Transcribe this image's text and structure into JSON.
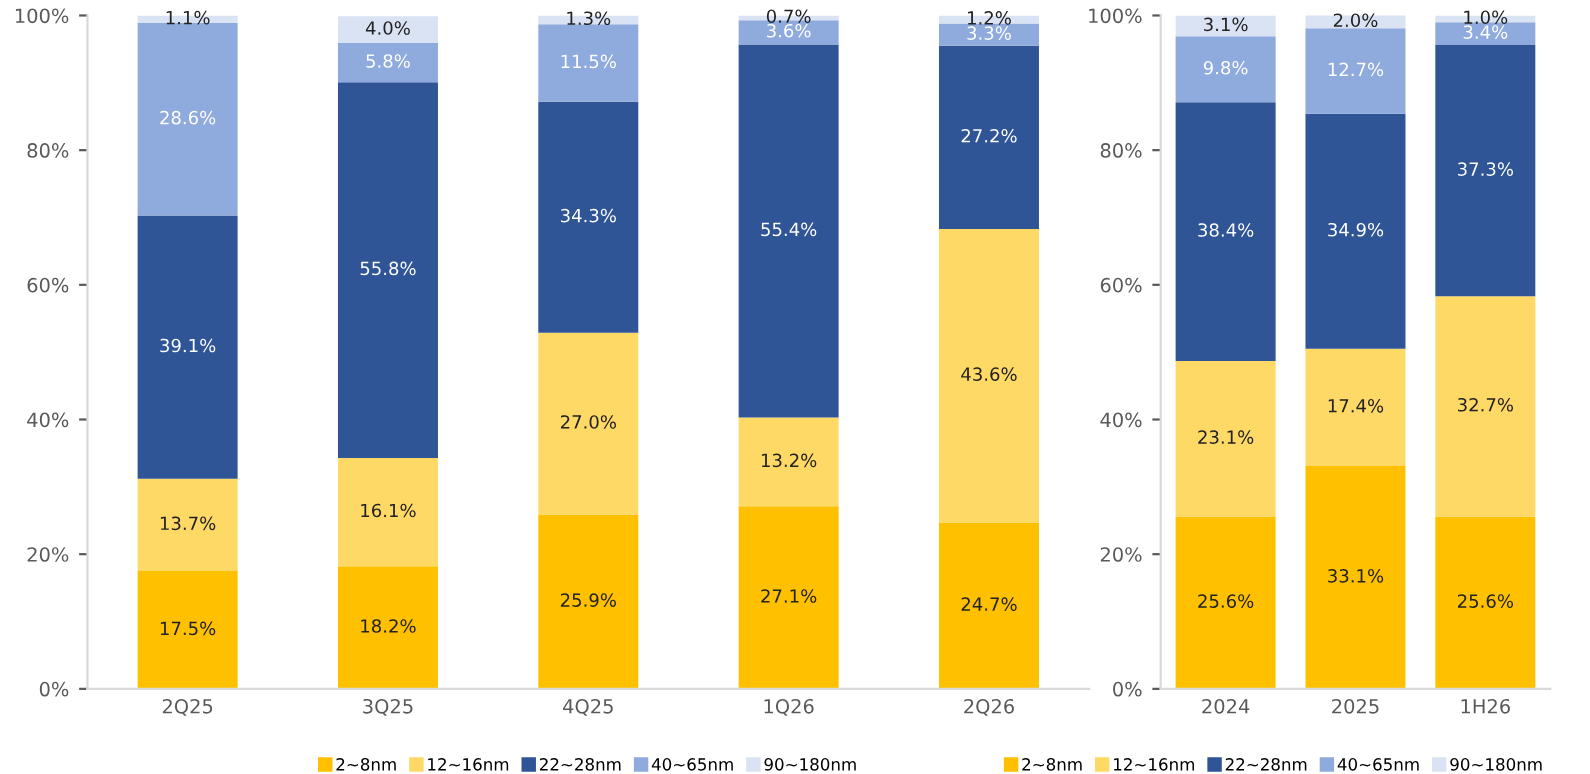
{
  "chart_data": [
    {
      "type": "bar",
      "stacked": true,
      "categories": [
        "2Q25",
        "3Q25",
        "4Q25",
        "1Q26",
        "2Q26"
      ],
      "ylim": [
        0,
        100
      ],
      "yticks": [
        {
          "value": 0,
          "label": "0%"
        },
        {
          "value": 20,
          "label": "20%"
        },
        {
          "value": 40,
          "label": "40%"
        },
        {
          "value": 60,
          "label": "60%"
        },
        {
          "value": 80,
          "label": "80%"
        },
        {
          "value": 100,
          "label": "100%"
        }
      ],
      "grid": false,
      "legend": "bottom",
      "series": [
        {
          "name": "2~8nm",
          "color": "#ffc000",
          "values": [
            17.5,
            18.2,
            25.9,
            27.1,
            24.7
          ],
          "value_labels": [
            "17.5%",
            "18.2%",
            "25.9%",
            "27.1%",
            "24.7%"
          ]
        },
        {
          "name": "12~16nm",
          "color": "#ffd966",
          "values": [
            13.7,
            16.1,
            27.0,
            13.2,
            43.6
          ],
          "value_labels": [
            "13.7%",
            "16.1%",
            "27.0%",
            "13.2%",
            "43.6%"
          ]
        },
        {
          "name": "22~28nm",
          "color": "#2f5597",
          "values": [
            39.1,
            55.8,
            34.3,
            55.4,
            27.2
          ],
          "value_labels": [
            "39.1%",
            "55.8%",
            "34.3%",
            "55.4%",
            "27.2%"
          ]
        },
        {
          "name": "40~65nm",
          "color": "#8faadc",
          "values": [
            28.6,
            5.8,
            11.5,
            3.6,
            3.3
          ],
          "value_labels": [
            "28.6%",
            "5.8%",
            "11.5%",
            "3.6%",
            "3.3%"
          ]
        },
        {
          "name": "90~180nm",
          "color": "#dae3f3",
          "values": [
            1.1,
            4.0,
            1.3,
            0.7,
            1.2
          ],
          "value_labels": [
            "1.1%",
            "4.0%",
            "1.3%",
            "0.7%",
            "1.2%"
          ]
        }
      ]
    },
    {
      "type": "bar",
      "stacked": true,
      "categories": [
        "2024",
        "2025",
        "1H26"
      ],
      "ylim": [
        0,
        100
      ],
      "yticks": [
        {
          "value": 0,
          "label": "0%"
        },
        {
          "value": 20,
          "label": "20%"
        },
        {
          "value": 40,
          "label": "40%"
        },
        {
          "value": 60,
          "label": "60%"
        },
        {
          "value": 80,
          "label": "80%"
        },
        {
          "value": 100,
          "label": "100%"
        }
      ],
      "grid": false,
      "legend": "bottom",
      "series": [
        {
          "name": "2~8nm",
          "color": "#ffc000",
          "values": [
            25.6,
            33.1,
            25.6
          ],
          "value_labels": [
            "25.6%",
            "33.1%",
            "25.6%"
          ]
        },
        {
          "name": "12~16nm",
          "color": "#ffd966",
          "values": [
            23.1,
            17.4,
            32.7
          ],
          "value_labels": [
            "23.1%",
            "17.4%",
            "32.7%"
          ]
        },
        {
          "name": "22~28nm",
          "color": "#2f5597",
          "values": [
            38.4,
            34.9,
            37.3
          ],
          "value_labels": [
            "38.4%",
            "34.9%",
            "37.3%"
          ]
        },
        {
          "name": "40~65nm",
          "color": "#8faadc",
          "values": [
            9.8,
            12.7,
            3.4
          ],
          "value_labels": [
            "9.8%",
            "12.7%",
            "3.4%"
          ]
        },
        {
          "name": "90~180nm",
          "color": "#dae3f3",
          "values": [
            3.1,
            2.0,
            1.0
          ],
          "value_labels": [
            "3.1%",
            "2.0%",
            "1.0%"
          ]
        }
      ]
    }
  ]
}
